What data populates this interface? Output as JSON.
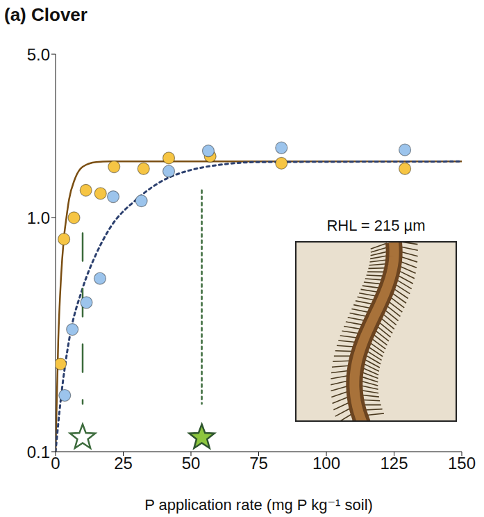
{
  "chart_data": {
    "type": "scatter",
    "title": "(a) Clover",
    "x_label": "P application rate (mg P kg⁻¹ soil)",
    "log": "y",
    "xlim": [
      0,
      150
    ],
    "xticks": [
      0,
      25,
      50,
      75,
      100,
      125,
      150
    ],
    "ylim": [
      0.1,
      5
    ],
    "yticks": [
      0.1,
      {
        "value": 1,
        "label": "1.0"
      },
      {
        "value": 5,
        "label": "5.0"
      }
    ],
    "annotations": [
      "RHL = 215 µm"
    ],
    "series": [
      {
        "type": "line",
        "color": "#7a4e12",
        "line_style": "solid",
        "marker": "none",
        "x": [
          0,
          1,
          2,
          3,
          4,
          5,
          7,
          10,
          15,
          20,
          150
        ],
        "values": [
          0.1,
          0.3,
          0.55,
          0.8,
          1.0,
          1.2,
          1.45,
          1.65,
          1.73,
          1.74,
          1.74
        ]
      },
      {
        "type": "line",
        "color": "#2b3f6e",
        "line_style": "dotted",
        "marker": "none",
        "x": [
          0,
          2,
          5,
          10,
          15,
          20,
          30,
          40,
          50,
          60,
          75,
          150
        ],
        "values": [
          0.1,
          0.17,
          0.3,
          0.5,
          0.7,
          0.9,
          1.2,
          1.45,
          1.6,
          1.68,
          1.73,
          1.74
        ]
      },
      {
        "type": "line",
        "color": "#3c6b3c",
        "line_style": "dashed",
        "marker": "none",
        "x": [
          10,
          10
        ],
        "values": [
          0.86,
          0.16
        ]
      },
      {
        "type": "line",
        "color": "#3c6b3c",
        "line_style": "dotted",
        "marker": "none",
        "x": [
          54,
          54
        ],
        "values": [
          1.31,
          0.16
        ]
      },
      {
        "type": "scatter",
        "color": "#f6c544",
        "marker": "circle",
        "x": [
          1.8,
          3.1,
          6.8,
          11.2,
          16.6,
          21.6,
          32.5,
          41.8,
          57.1,
          83.4,
          129
        ],
        "values": [
          0.237,
          0.81,
          1.0,
          1.31,
          1.27,
          1.65,
          1.62,
          1.8,
          1.83,
          1.71,
          1.62
        ]
      },
      {
        "type": "scatter",
        "color": "#9cc4ec",
        "marker": "circle",
        "x": [
          3.4,
          6.2,
          11.4,
          16.4,
          21.3,
          31.7,
          41.8,
          56.4,
          83.4,
          129
        ],
        "values": [
          0.174,
          0.333,
          0.434,
          0.55,
          1.23,
          1.18,
          1.58,
          1.93,
          1.99,
          1.95
        ]
      },
      {
        "type": "scatter",
        "color": "#3c6b3c",
        "marker": "open_star",
        "x": [
          10
        ],
        "values": [
          0.115
        ]
      },
      {
        "type": "scatter",
        "color": "#8dc63f",
        "marker": "star",
        "x": [
          54
        ],
        "values": [
          0.115
        ]
      }
    ]
  }
}
